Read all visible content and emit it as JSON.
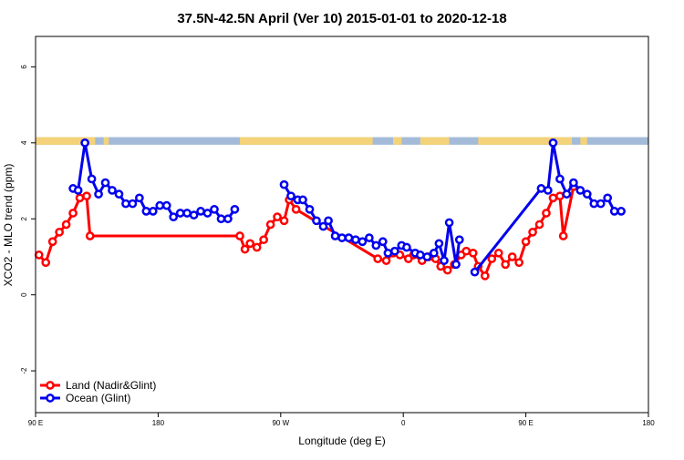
{
  "chart_data": {
    "type": "line",
    "title": "37.5N-42.5N April (Ver 10)   2015-01-01 to 2020-12-18",
    "xlabel": "Longitude (deg E)",
    "ylabel": "XCO2 - MLO trend (ppm)",
    "xlim": [
      -90,
      270
    ],
    "ylim": [
      -3.1,
      6.8
    ],
    "x_ticks": [
      {
        "value": -90,
        "label": "90 E"
      },
      {
        "value": -18,
        "label": "180"
      },
      {
        "value": 54,
        "label": "90 W"
      },
      {
        "value": 126,
        "label": "0"
      },
      {
        "value": 198,
        "label": "90 E"
      },
      {
        "value": 270,
        "label": "180"
      }
    ],
    "y_ticks": [
      {
        "value": -2,
        "label": "-2"
      },
      {
        "value": 0,
        "label": "0"
      },
      {
        "value": 2,
        "label": "2"
      },
      {
        "value": 4,
        "label": "4"
      },
      {
        "value": 6,
        "label": "6"
      }
    ],
    "band": {
      "y_range": [
        3.95,
        4.15
      ],
      "colors": {
        "land": "#f3d27a",
        "ocean": "#a3bbd9"
      },
      "land_segments": [
        [
          -90,
          -55
        ],
        [
          -50,
          -47
        ],
        [
          30,
          108
        ],
        [
          120,
          125
        ],
        [
          136,
          153
        ],
        [
          170,
          225
        ],
        [
          230,
          234
        ]
      ]
    },
    "legend": {
      "position": "bottom-left"
    },
    "series": [
      {
        "name": "Land (Nadir&Glint)",
        "color": "#ff0000",
        "points": [
          [
            -88,
            1.05
          ],
          [
            -84,
            0.85
          ],
          [
            -80,
            1.4
          ],
          [
            -76,
            1.65
          ],
          [
            -72,
            1.85
          ],
          [
            -68,
            2.15
          ],
          [
            -64,
            2.55
          ],
          [
            -60,
            2.6
          ],
          [
            -58,
            1.55
          ],
          [
            30,
            1.55
          ],
          [
            33,
            1.2
          ],
          [
            36,
            1.35
          ],
          [
            40,
            1.25
          ],
          [
            44,
            1.45
          ],
          [
            48,
            1.85
          ],
          [
            52,
            2.05
          ],
          [
            56,
            1.95
          ],
          [
            59,
            2.5
          ],
          [
            63,
            2.25
          ],
          [
            111,
            0.95
          ],
          [
            116,
            0.9
          ],
          [
            120,
            1.1
          ],
          [
            124,
            1.05
          ],
          [
            129,
            0.95
          ],
          [
            132,
            1.05
          ],
          [
            137,
            0.9
          ],
          [
            141,
            1.0
          ],
          [
            145,
            0.95
          ],
          [
            148,
            0.75
          ],
          [
            152,
            0.65
          ],
          [
            156,
            0.8
          ],
          [
            160,
            1.05
          ],
          [
            163,
            1.15
          ],
          [
            167,
            1.1
          ],
          [
            170,
            0.75
          ],
          [
            174,
            0.5
          ],
          [
            178,
            0.95
          ],
          [
            182,
            1.1
          ],
          [
            186,
            0.8
          ],
          [
            190,
            1.0
          ],
          [
            194,
            0.85
          ],
          [
            198,
            1.4
          ],
          [
            202,
            1.65
          ],
          [
            206,
            1.85
          ],
          [
            210,
            2.15
          ],
          [
            214,
            2.55
          ],
          [
            218,
            2.6
          ],
          [
            220,
            1.55
          ],
          [
            226,
            2.85
          ]
        ]
      },
      {
        "name": "Ocean (Glint)",
        "color": "#0000ee",
        "points": [
          [
            -68,
            2.8
          ],
          [
            -65,
            2.75
          ],
          [
            -61,
            4.0
          ],
          [
            -57,
            3.05
          ],
          [
            -53,
            2.65
          ],
          [
            -49,
            2.95
          ],
          [
            -45,
            2.75
          ],
          [
            -41,
            2.65
          ],
          [
            -37,
            2.4
          ],
          [
            -33,
            2.4
          ],
          [
            -29,
            2.55
          ],
          [
            -25,
            2.2
          ],
          [
            -21,
            2.2
          ],
          [
            -17,
            2.35
          ],
          [
            -13,
            2.35
          ],
          [
            -9,
            2.05
          ],
          [
            -5,
            2.15
          ],
          [
            -1,
            2.15
          ],
          [
            3,
            2.1
          ],
          [
            7,
            2.2
          ],
          [
            11,
            2.15
          ],
          [
            15,
            2.25
          ],
          [
            19,
            2.0
          ],
          [
            23,
            2.0
          ],
          [
            27,
            2.25
          ],
          [
            null,
            null
          ],
          [
            56,
            2.9
          ],
          [
            60,
            2.6
          ],
          [
            64,
            2.5
          ],
          [
            67,
            2.5
          ],
          [
            71,
            2.25
          ],
          [
            75,
            1.95
          ],
          [
            79,
            1.8
          ],
          [
            82,
            1.95
          ],
          [
            86,
            1.55
          ],
          [
            90,
            1.5
          ],
          [
            94,
            1.5
          ],
          [
            98,
            1.45
          ],
          [
            102,
            1.4
          ],
          [
            106,
            1.5
          ],
          [
            110,
            1.3
          ],
          [
            114,
            1.4
          ],
          [
            117,
            1.1
          ],
          [
            121,
            1.15
          ],
          [
            125,
            1.3
          ],
          [
            128,
            1.25
          ],
          [
            133,
            1.1
          ],
          [
            136,
            1.05
          ],
          [
            140,
            1.0
          ],
          [
            144,
            1.1
          ],
          [
            147,
            1.35
          ],
          [
            150,
            0.9
          ],
          [
            153,
            1.9
          ],
          [
            157,
            0.8
          ],
          [
            159,
            1.45
          ],
          [
            null,
            null
          ],
          [
            168,
            0.6
          ],
          [
            207,
            2.8
          ],
          [
            211,
            2.75
          ],
          [
            214,
            4.0
          ],
          [
            218,
            3.05
          ],
          [
            222,
            2.65
          ],
          [
            226,
            2.95
          ],
          [
            230,
            2.75
          ],
          [
            234,
            2.65
          ],
          [
            238,
            2.4
          ],
          [
            242,
            2.4
          ],
          [
            246,
            2.55
          ],
          [
            250,
            2.2
          ],
          [
            254,
            2.2
          ]
        ]
      }
    ]
  }
}
